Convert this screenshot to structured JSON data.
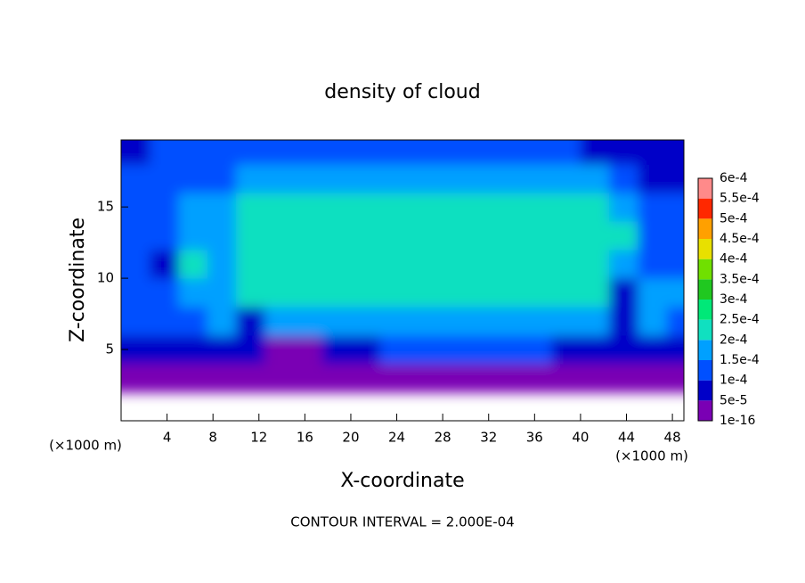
{
  "chart_data": {
    "type": "heatmap",
    "title": "density of cloud",
    "xlabel": "X-coordinate",
    "ylabel": "Z-coordinate",
    "x_unit_label": "(×1000 m)",
    "y_unit_label": "(×1000 m)",
    "annotation": "CONTOUR INTERVAL = 2.000E-04",
    "xlim": [
      0,
      49
    ],
    "xticks": [
      4,
      8,
      12,
      16,
      20,
      24,
      28,
      32,
      36,
      40,
      44,
      48
    ],
    "ylim": [
      0,
      19.7
    ],
    "yticks": [
      5,
      10,
      15
    ],
    "x": [
      1.25,
      3.75,
      6.25,
      8.75,
      11.25,
      13.75,
      16.25,
      18.75,
      21.25,
      23.75,
      26.25,
      28.75,
      31.25,
      33.75,
      36.25,
      38.75,
      41.25,
      43.75,
      46.25,
      48.75
    ],
    "y": [
      1,
      3,
      5,
      7,
      9,
      11,
      13,
      15,
      17,
      19
    ],
    "z": [
      [
        null,
        null,
        null,
        null,
        null,
        null,
        null,
        null,
        null,
        null,
        null,
        null,
        null,
        null,
        null,
        null,
        null,
        null,
        null,
        null
      ],
      [
        2e-05,
        2e-05,
        2e-05,
        2e-05,
        2e-05,
        2e-05,
        2e-05,
        2e-05,
        2e-05,
        2e-05,
        2e-05,
        2e-05,
        2e-05,
        2e-05,
        2e-05,
        2e-05,
        2e-05,
        2e-05,
        2e-05,
        2e-05
      ],
      [
        9e-05,
        8e-05,
        7e-05,
        9e-05,
        8e-05,
        2e-05,
        3e-05,
        9e-05,
        9e-05,
        0.0001,
        0.0001,
        0.0001,
        0.0001,
        0.0001,
        0.0001,
        9e-05,
        9e-05,
        9e-05,
        8e-05,
        8e-05
      ],
      [
        0.00012,
        0.00011,
        0.00013,
        0.00015,
        8e-05,
        0.00016,
        0.00017,
        0.00017,
        0.00017,
        0.00017,
        0.00017,
        0.00017,
        0.00017,
        0.00017,
        0.00017,
        0.00017,
        0.00016,
        9e-05,
        0.00015,
        0.00014
      ],
      [
        0.00012,
        0.0001,
        0.00018,
        0.00015,
        0.00022,
        0.00023,
        0.00023,
        0.00023,
        0.00023,
        0.00023,
        0.00023,
        0.00023,
        0.00023,
        0.00023,
        0.00023,
        0.00023,
        0.00021,
        8e-05,
        0.00016,
        0.00015
      ],
      [
        0.00011,
        9e-05,
        0.00021,
        0.00016,
        0.00024,
        0.00024,
        0.00024,
        0.00024,
        0.00024,
        0.00024,
        0.00024,
        0.00024,
        0.00024,
        0.00024,
        0.00024,
        0.00024,
        0.00024,
        0.00017,
        0.0001,
        0.00011
      ],
      [
        0.00012,
        0.00013,
        0.00016,
        0.00018,
        0.00023,
        0.00024,
        0.00024,
        0.00024,
        0.00024,
        0.00024,
        0.00024,
        0.00024,
        0.00024,
        0.00024,
        0.00024,
        0.00024,
        0.00023,
        0.0002,
        0.00013,
        0.0001
      ],
      [
        0.00011,
        0.00013,
        0.00015,
        0.00017,
        0.0002,
        0.00022,
        0.00022,
        0.00022,
        0.00022,
        0.00022,
        0.00022,
        0.00022,
        0.00022,
        0.00022,
        0.00022,
        0.00022,
        0.00021,
        0.00019,
        0.00014,
        0.0001
      ],
      [
        0.0001,
        0.00012,
        0.00013,
        0.00014,
        0.00015,
        0.00016,
        0.00017,
        0.00018,
        0.00018,
        0.00018,
        0.00018,
        0.00018,
        0.00018,
        0.00018,
        0.00017,
        0.00016,
        0.00015,
        0.00013,
        8e-05,
        6e-05
      ],
      [
        8e-05,
        0.0001,
        0.00011,
        0.00012,
        0.00012,
        0.00012,
        0.00012,
        0.00012,
        0.00012,
        0.00012,
        0.00012,
        0.00012,
        0.00012,
        0.00012,
        0.00012,
        0.00011,
        9e-05,
        8e-05,
        6e-05,
        5e-05
      ]
    ],
    "levels": [
      {
        "value": 1e-16,
        "label": "1e-16"
      },
      {
        "value": 5e-05,
        "label": "5e-5"
      },
      {
        "value": 0.0001,
        "label": "1e-4"
      },
      {
        "value": 0.00015,
        "label": "1.5e-4"
      },
      {
        "value": 0.0002,
        "label": "2e-4"
      },
      {
        "value": 0.00025,
        "label": "2.5e-4"
      },
      {
        "value": 0.0003,
        "label": "3e-4"
      },
      {
        "value": 0.00035,
        "label": "3.5e-4"
      },
      {
        "value": 0.0004,
        "label": "4e-4"
      },
      {
        "value": 0.00045,
        "label": "4.5e-4"
      },
      {
        "value": 0.0005,
        "label": "5e-4"
      },
      {
        "value": 0.00055,
        "label": "5.5e-4"
      },
      {
        "value": 0.0006,
        "label": "6e-4"
      }
    ],
    "colors": [
      "#7a00b4",
      "#0000c8",
      "#0050ff",
      "#00a0ff",
      "#10e0c0",
      "#00e878",
      "#20c820",
      "#70e000",
      "#e8e000",
      "#ffa000",
      "#ff2800",
      "#ff8a8a"
    ]
  }
}
